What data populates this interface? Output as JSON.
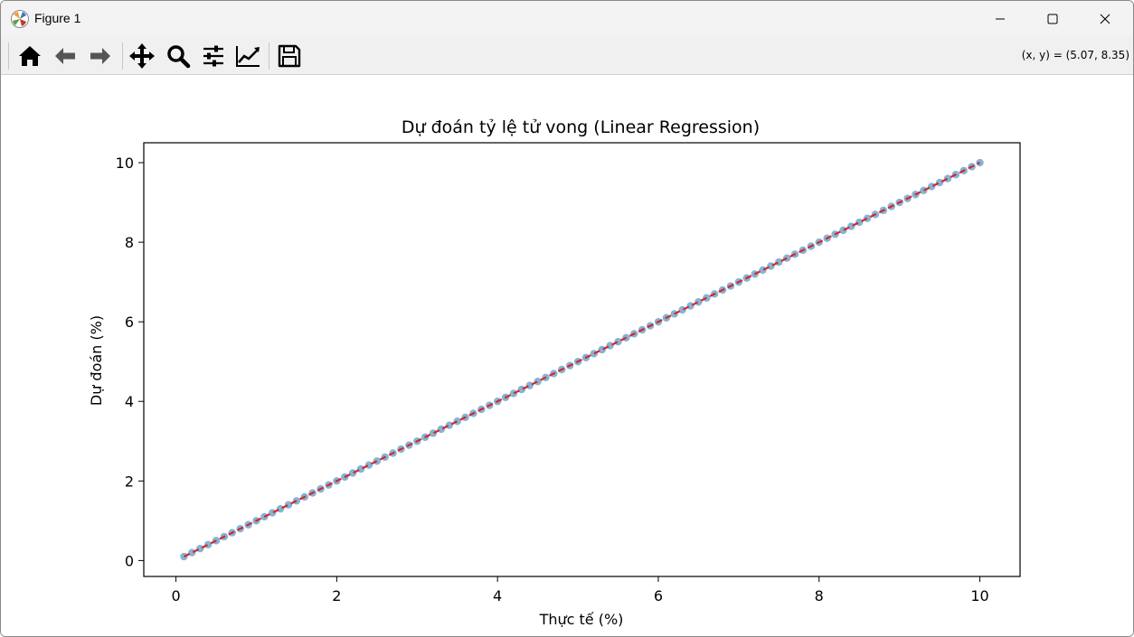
{
  "window": {
    "title": "Figure 1",
    "icon": "matplotlib-icon",
    "controls": [
      "minimize-icon",
      "maximize-icon",
      "close-icon"
    ]
  },
  "toolbar": {
    "buttons": [
      "home-icon",
      "back-arrow-icon",
      "forward-arrow-icon",
      "pan-icon",
      "zoom-icon",
      "subplots-config-icon",
      "edit-axis-icon",
      "save-icon"
    ],
    "coords": "(x, y) = (5.07, 8.35)"
  },
  "chart_data": {
    "type": "scatter",
    "title": "Dự đoán tỷ lệ tử vong (Linear Regression)",
    "xlabel": "Thực tế (%)",
    "ylabel": "Dự đoán (%)",
    "xlim": [
      -0.4,
      10.5
    ],
    "ylim": [
      -0.4,
      10.5
    ],
    "xticks": [
      "0",
      "2",
      "4",
      "6",
      "8",
      "10"
    ],
    "yticks": [
      "0",
      "2",
      "4",
      "6",
      "8",
      "10"
    ],
    "xtick_values": [
      0,
      2,
      4,
      6,
      8,
      10
    ],
    "ytick_values": [
      0,
      2,
      4,
      6,
      8,
      10
    ],
    "grid": false,
    "points": {
      "x_start": 0.1,
      "x_end": 10.0,
      "count": 100,
      "relation": "y = x"
    },
    "reference_line": {
      "x": [
        0.1,
        10.0
      ],
      "y": [
        0.1,
        10.0
      ],
      "style": "dashed"
    },
    "colors": {
      "points": "#1f77b4",
      "line": "#d62728"
    }
  }
}
